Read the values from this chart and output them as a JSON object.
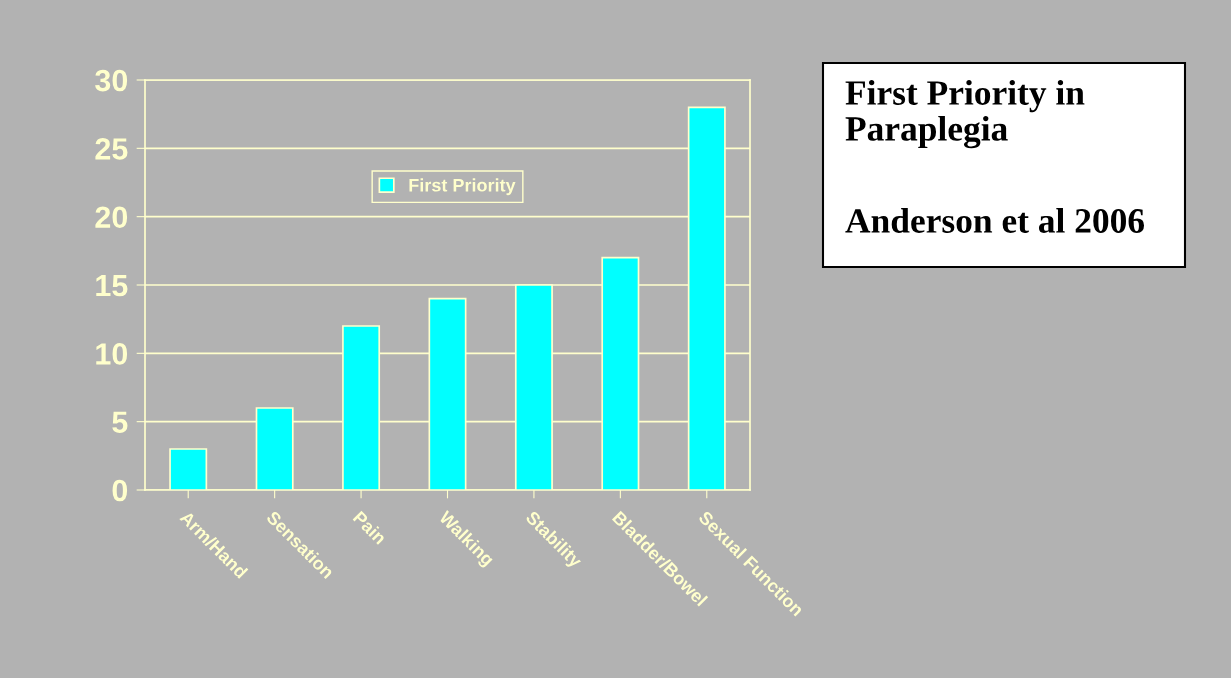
{
  "chart_data": {
    "type": "bar",
    "title": "First Priority in Paraplegia",
    "annotations": [
      "Anderson et al 2006"
    ],
    "categories": [
      "Arm/Hand",
      "Sensation",
      "Pain",
      "Walking",
      "Stability",
      "Bladder/Bowel",
      "Sexual Function"
    ],
    "series": [
      {
        "name": "First Priority",
        "color": "#00ffff",
        "values": [
          3,
          6,
          12,
          14,
          15,
          17,
          28
        ]
      }
    ],
    "ylim": [
      0,
      30
    ],
    "yticks": [
      0,
      5,
      10,
      15,
      20,
      25,
      30
    ],
    "grid": "y",
    "legend": "top"
  }
}
